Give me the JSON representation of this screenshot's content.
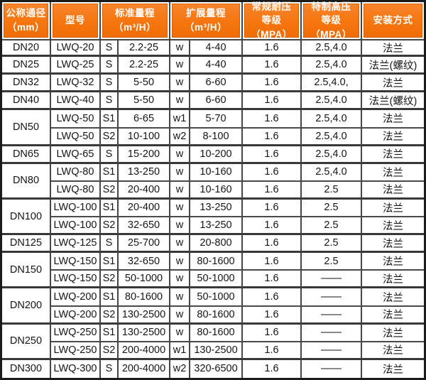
{
  "colors": {
    "header_orange": "#f5750e",
    "header_outline": "#d55f05",
    "header_text": "#ffffff",
    "grid_line": "#454545",
    "outer_border": "#1b1b1b",
    "body_text": "#151515"
  },
  "chart_data": {
    "type": "table",
    "headers": {
      "dn": "公称通径\n（mm）",
      "model": "型号",
      "std": "标准量程\n（m³/H）",
      "ext": "扩展量程\n（m³/H）",
      "mpa": "常规耐压\n等级（MPA）",
      "hp": "特制高压\n等级（MPA）",
      "install": "安装方式"
    },
    "rows": [
      {
        "dn": "DN20",
        "model": "LWQ-20",
        "s": "S",
        "std": "2.2-25",
        "w": "w",
        "ext": "4-40",
        "mpa": "1.6",
        "hp": "2.5,4.0",
        "install": "法兰"
      },
      {
        "dn": "DN25",
        "model": "LWQ-25",
        "s": "S",
        "std": "2.2-25",
        "w": "w",
        "ext": "4-40",
        "mpa": "1.6",
        "hp": "2.5,4.0",
        "install": "法兰(螺纹)"
      },
      {
        "dn": "DN32",
        "model": "LWQ-32",
        "s": "S",
        "std": "5-50",
        "w": "w",
        "ext": "6-60",
        "mpa": "1.6",
        "hp": "2.5,4.0,",
        "install": "法兰"
      },
      {
        "dn": "DN40",
        "model": "LWQ-40",
        "s": "S",
        "std": "5-50",
        "w": "w",
        "ext": "6-60",
        "mpa": "1.6",
        "hp": "2.5,4.0",
        "install": "法兰(螺纹)"
      },
      {
        "dn": "DN50",
        "model": "LWQ-50",
        "s": "S1",
        "std": "6-65",
        "w": "w1",
        "ext": "5-70",
        "mpa": "1.6",
        "hp": "2.5,4.0",
        "install": "法兰"
      },
      {
        "model": "LWQ-50",
        "s": "S2",
        "std": "10-100",
        "w": "w2",
        "ext": "8-100",
        "mpa": "1.6",
        "hp": "2.5,4.0",
        "install": "法兰"
      },
      {
        "dn": "DN65",
        "model": "LWQ-65",
        "s": "S",
        "std": "15-200",
        "w": "w",
        "ext": "10-200",
        "mpa": "1.6",
        "hp": "2.5,4.0",
        "install": "法兰"
      },
      {
        "dn": "DN80",
        "model": "LWQ-80",
        "s": "S1",
        "std": "13-250",
        "w": "w",
        "ext": "10-160",
        "mpa": "1.6",
        "hp": "2.5,4.0",
        "install": "法兰"
      },
      {
        "model": "LWQ-80",
        "s": "S2",
        "std": "20-400",
        "w": "w",
        "ext": "10-160",
        "mpa": "1.6",
        "hp": "2.5",
        "install": "法兰"
      },
      {
        "dn": "DN100",
        "model": "LWQ-100",
        "s": "S1",
        "std": "20-400",
        "w": "w",
        "ext": "13-250",
        "mpa": "1.6",
        "hp": "2.5",
        "install": "法兰"
      },
      {
        "model": "LWQ-100",
        "s": "S2",
        "std": "32-650",
        "w": "w",
        "ext": "13-250",
        "mpa": "1.6",
        "hp": "2.5",
        "install": "法兰"
      },
      {
        "dn": "DN125",
        "model": "LWQ-125",
        "s": "S",
        "std": "25-700",
        "w": "w",
        "ext": "20-800",
        "mpa": "1.6",
        "hp": "2.5",
        "install": "法兰"
      },
      {
        "dn": "DN150",
        "model": "LWQ-150",
        "s": "S1",
        "std": "32-650",
        "w": "w",
        "ext": "80-1600",
        "mpa": "1.6",
        "hp": "2.5",
        "install": "法兰"
      },
      {
        "model": "LWQ-150",
        "s": "S2",
        "std": "50-1000",
        "w": "w",
        "ext": "50-1000",
        "mpa": "1.6",
        "hp": "——",
        "install": "法兰"
      },
      {
        "dn": "DN200",
        "model": "LWQ-200",
        "s": "S1",
        "std": "80-1600",
        "w": "w",
        "ext": "50-1000",
        "mpa": "1.6",
        "hp": "——",
        "install": "法兰"
      },
      {
        "model": "LWQ-200",
        "s": "S2",
        "std": "130-2500",
        "w": "w",
        "ext": "80-1600",
        "mpa": "1.6",
        "hp": "——",
        "install": "法兰"
      },
      {
        "dn": "DN250",
        "model": "LWQ-250",
        "s": "S1",
        "std": "130-2500",
        "w": "w",
        "ext": "80-1600",
        "mpa": "1.6",
        "hp": "——",
        "install": "法兰"
      },
      {
        "model": "LWQ-250",
        "s": "S2",
        "std": "200-4000",
        "w": "w1",
        "ext": "130-2500",
        "mpa": "1.6",
        "hp": "——",
        "install": "法兰"
      },
      {
        "dn": "DN300",
        "model": "LWQ-300",
        "s": "S",
        "std": "200-4000",
        "w": "w2",
        "ext": "320-6500",
        "mpa": "1.6",
        "hp": "——",
        "install": "法兰"
      }
    ]
  }
}
